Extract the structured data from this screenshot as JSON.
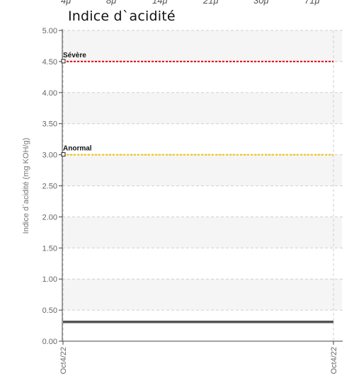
{
  "top_partial_labels": [
    "4μ",
    "8μ",
    "14μ",
    "21μ",
    "30μ",
    "71μ"
  ],
  "chart_data": {
    "type": "line",
    "title": "Indice d`acidité",
    "ylabel": "Indice d`acidité (mg KOH/g)",
    "xlabel": "",
    "ylim": [
      0,
      5
    ],
    "yticks": [
      "0.00",
      "0.50",
      "1.00",
      "1.50",
      "2.00",
      "2.50",
      "3.00",
      "3.50",
      "4.00",
      "4.50",
      "5.00"
    ],
    "x_tick_labels": [
      "Oct4/22",
      "Oct4/22"
    ],
    "grid": true,
    "thresholds": [
      {
        "name": "Sévère",
        "value": 4.5,
        "color": "#e8000b"
      },
      {
        "name": "Anormal",
        "value": 3.0,
        "color": "#f2c200"
      }
    ],
    "series": [
      {
        "x": [
          "Oct4/22",
          "Oct4/22"
        ],
        "values": [
          0.31,
          0.31
        ],
        "color": "#555555"
      }
    ]
  }
}
